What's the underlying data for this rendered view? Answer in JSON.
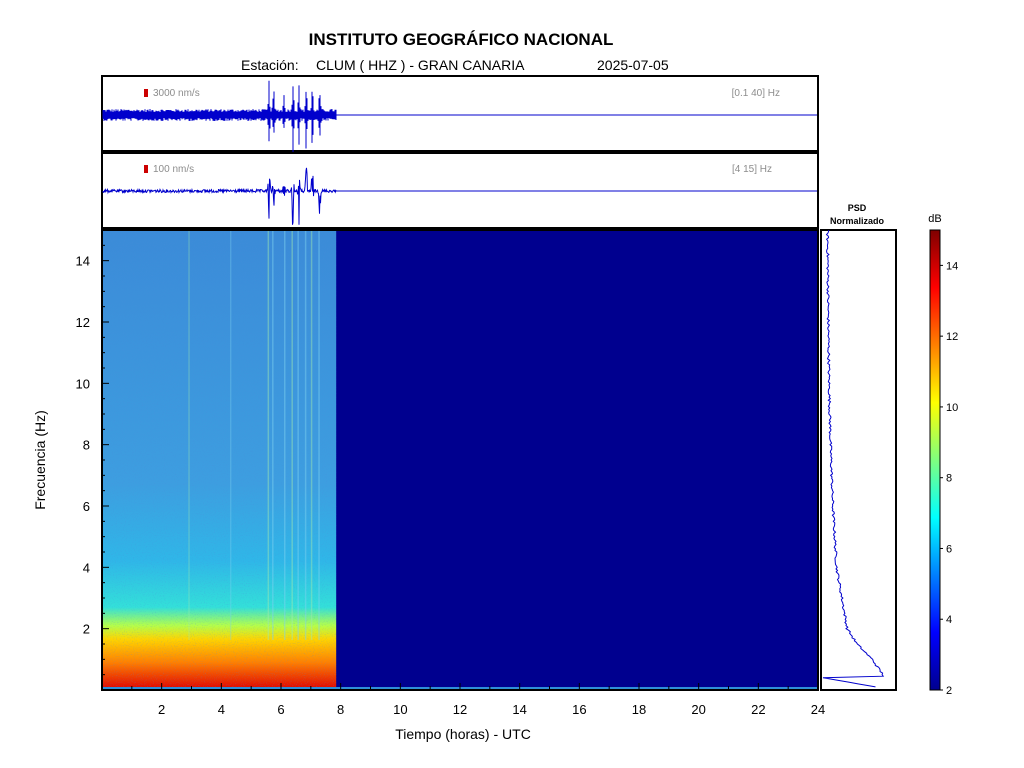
{
  "header": {
    "title": "INSTITUTO GEOGRÁFICO NACIONAL",
    "station_prefix": "Estación:",
    "station": "CLUM ( HHZ ) - GRAN CANARIA",
    "date": "2025-07-05"
  },
  "traces": [
    {
      "scale_label": "3000 nm/s",
      "band_label": "[0.1 40] Hz"
    },
    {
      "scale_label": "100 nm/s",
      "band_label": "[4 15] Hz"
    }
  ],
  "psd": {
    "title_line1": "PSD",
    "title_line2": "Normalizado"
  },
  "colorbar": {
    "unit": "dB",
    "min": 2,
    "max": 15,
    "ticks": [
      2,
      4,
      6,
      8,
      10,
      12,
      14
    ]
  },
  "colors": {
    "trace": "#0000cc",
    "scale_marker": "#cc0000",
    "no_data": "#00008f"
  },
  "chart_data": {
    "type": "heatmap",
    "title": "INSTITUTO GEOGRÁFICO NACIONAL",
    "xlabel": "Tiempo (horas) - UTC",
    "ylabel": "Frecuencia  (Hz)",
    "xlim": [
      0,
      24
    ],
    "ylim": [
      0,
      15
    ],
    "xticks": [
      2,
      4,
      6,
      8,
      10,
      12,
      14,
      16,
      18,
      20,
      22,
      24
    ],
    "yticks": [
      2,
      4,
      6,
      8,
      10,
      12,
      14
    ],
    "data_end_hour": 7.85,
    "spectrum_db_by_frequency": [
      {
        "freq": 0.3,
        "db": 12.5
      },
      {
        "freq": 1.0,
        "db": 10.5
      },
      {
        "freq": 1.5,
        "db": 8.5
      },
      {
        "freq": 2.0,
        "db": 7.2
      },
      {
        "freq": 3.0,
        "db": 6.5
      },
      {
        "freq": 4.0,
        "db": 5.8
      },
      {
        "freq": 6.0,
        "db": 5.3
      },
      {
        "freq": 8.0,
        "db": 5.0
      },
      {
        "freq": 10.0,
        "db": 4.8
      },
      {
        "freq": 12.0,
        "db": 4.7
      },
      {
        "freq": 15.0,
        "db": 4.6
      }
    ],
    "no_data_db": 2
  }
}
